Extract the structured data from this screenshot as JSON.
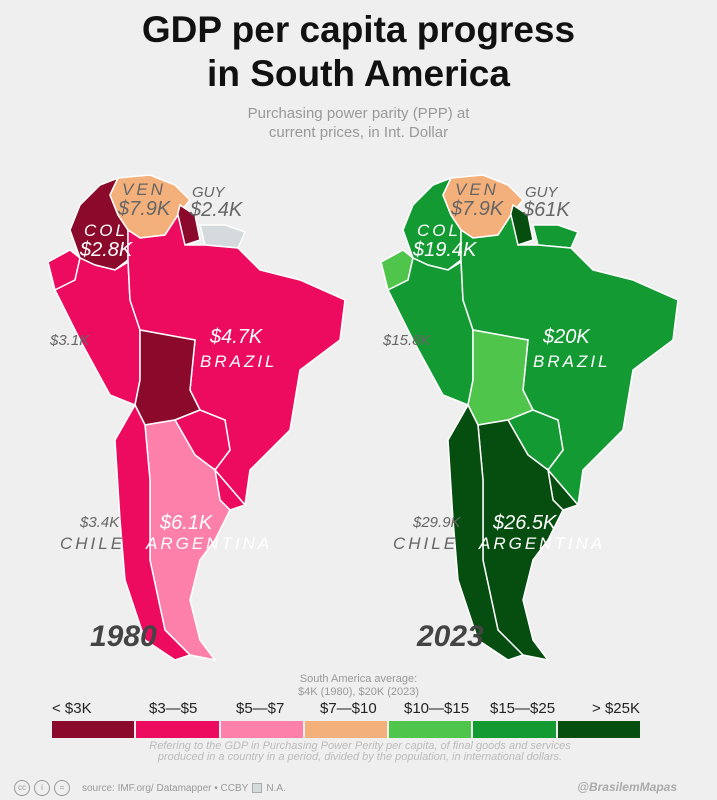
{
  "title": [
    "GDP per capita progress",
    "in South America"
  ],
  "subtitle": [
    "Purchasing power parity (PPP) at",
    "current prices, in Int. Dollar"
  ],
  "colors": {
    "lt3": "#8b0a2c",
    "3to5": "#ec0b5f",
    "5to7": "#fd80ab",
    "7to10": "#f4b07b",
    "10to15": "#4fc64b",
    "15to25": "#139a33",
    "gt25": "#064d10",
    "na": "#d5dadd"
  },
  "maps": [
    {
      "year": "1980",
      "fills": {
        "COL": "lt3",
        "VEN": "7to10",
        "GUY": "lt3",
        "SUR": "na",
        "ECU": "3to5",
        "PER": "3to5",
        "BRA": "3to5",
        "BOL": "lt3",
        "PRY": "3to5",
        "URY": "3to5",
        "ARG": "5to7",
        "CHL": "3to5"
      },
      "labels": {
        "ven_name": "VEN",
        "ven_value": "$7.9K",
        "guy_name": "GUY",
        "guy_value": "$2.4K",
        "col_name": "COL",
        "col_value": "$2.8K",
        "peru_value": "$3.1K",
        "brazil_value": "$4.7K",
        "brazil_name": "BRAZIL",
        "chile_value": "$3.4K",
        "chile_name": "CHILE",
        "argentina_value": "$6.1K",
        "argentina_name": "ARGENTINA"
      }
    },
    {
      "year": "2023",
      "fills": {
        "COL": "15to25",
        "VEN": "7to10",
        "GUY": "gt25",
        "SUR": "15to25",
        "ECU": "10to15",
        "PER": "15to25",
        "BRA": "15to25",
        "BOL": "10to15",
        "PRY": "15to25",
        "URY": "gt25",
        "ARG": "gt25",
        "CHL": "gt25"
      },
      "labels": {
        "ven_name": "VEN",
        "ven_value": "$7.9K",
        "guy_name": "GUY",
        "guy_value": "$61K",
        "col_name": "COL",
        "col_value": "$19.4K",
        "peru_value": "$15.8K",
        "brazil_value": "$20K",
        "brazil_name": "BRAZIL",
        "chile_value": "$29.9K",
        "chile_name": "CHILE",
        "argentina_value": "$26.5K",
        "argentina_name": "ARGENTINA"
      }
    }
  ],
  "average": [
    "South America average:",
    "$4K (1980), $20K (2023)"
  ],
  "legend": [
    {
      "label": "< $3K",
      "key": "lt3"
    },
    {
      "label": "$3—$5",
      "key": "3to5"
    },
    {
      "label": "$5—$7",
      "key": "5to7"
    },
    {
      "label": "$7—$10",
      "key": "7to10"
    },
    {
      "label": "$10—$15",
      "key": "10to15"
    },
    {
      "label": "$15—$25",
      "key": "15to25"
    },
    {
      "label": "> $25K",
      "key": "gt25"
    }
  ],
  "note": "Refering to the GDP in Purchasing Power Perity per capita, of final goods and services produced in a country in a period, divided by the population, in international dollars.",
  "footer": {
    "source": "source: IMF.org/ Datamapper • CCBY",
    "na_label": "N.A.",
    "handle": "@BrasilemMapas"
  }
}
